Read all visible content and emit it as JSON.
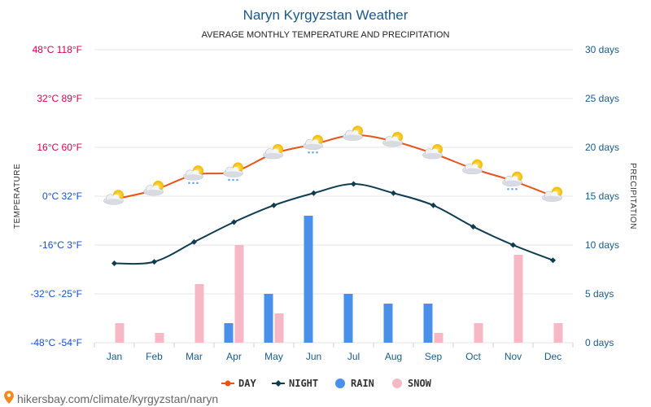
{
  "title": "Naryn Kyrgyzstan Weather",
  "subtitle": "AVERAGE MONTHLY TEMPERATURE AND PRECIPITATION",
  "footer": "hikersbay.com/climate/kyrgyzstan/naryn",
  "colors": {
    "day": "#e8531a",
    "night": "#0e3d52",
    "rain": "#4a90e8",
    "snow": "#f7b8c6",
    "left_tick_positive": "#d6004f",
    "left_tick_negative": "#1a4fc8",
    "right_tick": "#1a5a8a",
    "grid": "#e6e6e6"
  },
  "chart_data": {
    "type": "line+bar",
    "categories": [
      "Jan",
      "Feb",
      "Mar",
      "Apr",
      "May",
      "Jun",
      "Jul",
      "Aug",
      "Sep",
      "Oct",
      "Nov",
      "Dec"
    ],
    "left_axis": {
      "label": "TEMPERATURE",
      "range_c": [
        -48,
        48
      ],
      "ticks": [
        {
          "c": 48,
          "label": "48°C 118°F"
        },
        {
          "c": 32,
          "label": "32°C 89°F"
        },
        {
          "c": 16,
          "label": "16°C 60°F"
        },
        {
          "c": 0,
          "label": "0°C 32°F"
        },
        {
          "c": -16,
          "label": "-16°C 3°F"
        },
        {
          "c": -32,
          "label": "-32°C -25°F"
        },
        {
          "c": -48,
          "label": "-48°C -54°F"
        }
      ]
    },
    "right_axis": {
      "label": "PRECIPITATION",
      "range_days": [
        0,
        30
      ],
      "ticks": [
        {
          "v": 30,
          "label": "30 days"
        },
        {
          "v": 25,
          "label": "25 days"
        },
        {
          "v": 20,
          "label": "20 days"
        },
        {
          "v": 15,
          "label": "15 days"
        },
        {
          "v": 10,
          "label": "10 days"
        },
        {
          "v": 5,
          "label": "5 days"
        },
        {
          "v": 0,
          "label": "0 days"
        }
      ]
    },
    "series": [
      {
        "name": "DAY",
        "kind": "line",
        "axis": "left",
        "values": [
          -1,
          2,
          7,
          8,
          14,
          17,
          20,
          18,
          14,
          9,
          5,
          0
        ]
      },
      {
        "name": "NIGHT",
        "kind": "line",
        "axis": "left",
        "values": [
          -22,
          -21.5,
          -15,
          -8.5,
          -3,
          1,
          4,
          1,
          -3,
          -10,
          -16,
          -21
        ]
      },
      {
        "name": "RAIN",
        "kind": "bar",
        "axis": "right",
        "values": [
          0,
          0,
          0,
          2,
          5,
          13,
          5,
          4,
          4,
          0,
          0,
          0
        ]
      },
      {
        "name": "SNOW",
        "kind": "bar",
        "axis": "right",
        "values": [
          2,
          1,
          6,
          10,
          3,
          0,
          0,
          0,
          1,
          2,
          9,
          2
        ]
      }
    ],
    "weather_icons": [
      "sun-cloud",
      "sun-cloud",
      "sun-cloud-rain",
      "sun-cloud-rain",
      "sun-cloud",
      "sun-cloud-rain",
      "sun-cloud",
      "sun-cloud",
      "sun-cloud",
      "sun-cloud",
      "sun-cloud-rain",
      "sun-cloud"
    ],
    "grid": true,
    "legend_position": "bottom-center"
  }
}
